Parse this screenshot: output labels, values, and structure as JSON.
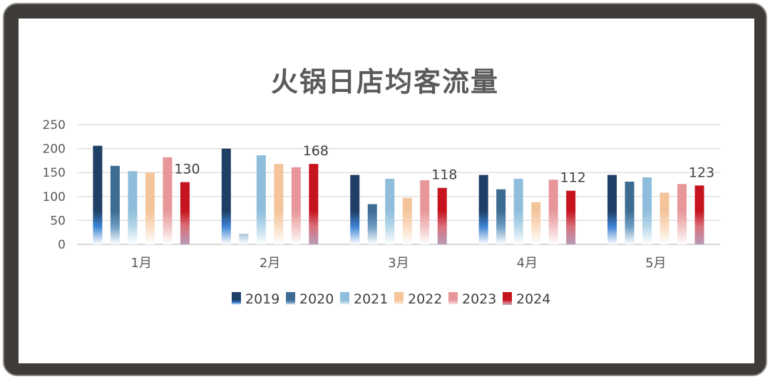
{
  "chart_data": {
    "type": "bar",
    "title": "火锅日店均客流量",
    "categories": [
      "1月",
      "2月",
      "3月",
      "4月",
      "5月"
    ],
    "series": [
      {
        "name": "2019",
        "values": [
          206,
          200,
          145,
          145,
          145
        ]
      },
      {
        "name": "2020",
        "values": [
          164,
          22,
          84,
          115,
          131
        ]
      },
      {
        "name": "2021",
        "values": [
          153,
          186,
          137,
          137,
          140
        ]
      },
      {
        "name": "2022",
        "values": [
          150,
          168,
          97,
          88,
          108
        ]
      },
      {
        "name": "2023",
        "values": [
          182,
          161,
          134,
          135,
          126
        ]
      },
      {
        "name": "2024",
        "values": [
          130,
          168,
          118,
          112,
          123
        ]
      }
    ],
    "data_labels": {
      "series": "2024",
      "values": [
        130,
        168,
        118,
        112,
        123
      ]
    },
    "yticks": [
      0,
      50,
      100,
      150,
      200,
      250
    ],
    "ylim": [
      0,
      250
    ],
    "grid": true,
    "legend_position": "bottom",
    "colors": {
      "2019": [
        "#1f3f66",
        "#3c83d4",
        "#ffffff"
      ],
      "2020": [
        "#3e6b92",
        "#6d9cc2",
        "#ffffff"
      ],
      "2021": [
        "#8fbedc",
        "#b6d7ea",
        "#ffffff"
      ],
      "2022": [
        "#f4c49b",
        "#f9dcc2",
        "#ffffff"
      ],
      "2023": [
        "#e7979a",
        "#f2c2c3",
        "#ffffff"
      ],
      "2024": [
        "#c5141e",
        "#d9707a",
        "#b89bb8"
      ]
    }
  }
}
